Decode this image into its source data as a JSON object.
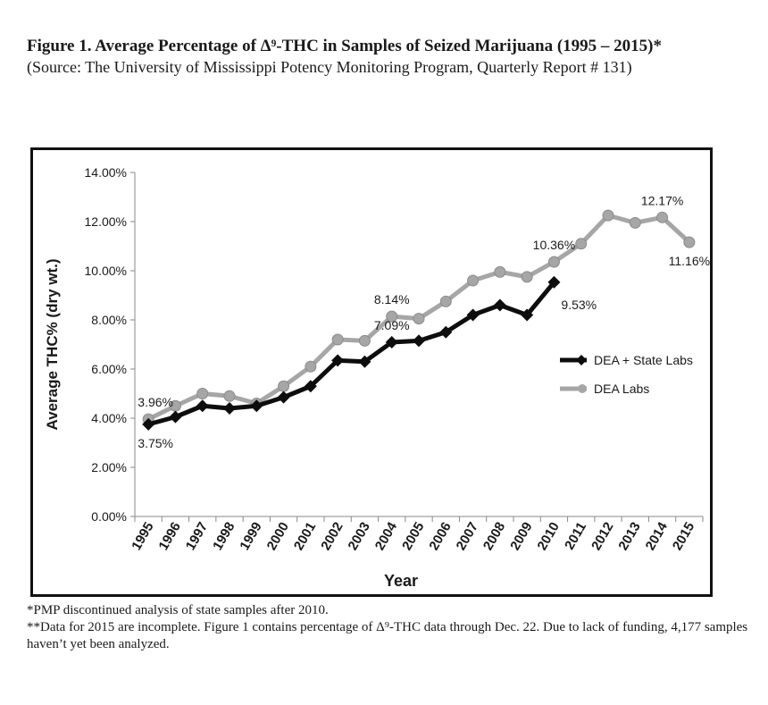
{
  "figure": {
    "title": "Figure 1.  Average Percentage of Δ⁹-THC in Samples of Seized Marijuana (1995 – 2015)*",
    "source": "(Source: The University of Mississippi Potency Monitoring Program, Quarterly Report # 131)"
  },
  "footnotes": {
    "note1": "*PMP discontinued analysis of state samples after 2010.",
    "note2": "**Data for 2015 are incomplete. Figure 1 contains percentage of Δ⁹-THC data through Dec. 22. Due to lack of funding, 4,177 samples haven’t yet been analyzed."
  },
  "colors": {
    "dea_state": "#0d0d0d",
    "dea": "#a6a6a6",
    "axis": "#888888",
    "text": "#1a1a1a"
  },
  "chart_data": {
    "type": "line",
    "title": "",
    "xlabel": "Year",
    "ylabel": "Average THC% (dry wt.)",
    "ylim": [
      0,
      14
    ],
    "y_ticks": [
      "0.00%",
      "2.00%",
      "4.00%",
      "6.00%",
      "8.00%",
      "10.00%",
      "12.00%",
      "14.00%"
    ],
    "categories": [
      "1995",
      "1996",
      "1997",
      "1998",
      "1999",
      "2000",
      "2001",
      "2002",
      "2003",
      "2004",
      "2005",
      "2006",
      "2007",
      "2008",
      "2009",
      "2010",
      "2011",
      "2012",
      "2013",
      "2014",
      "2015"
    ],
    "series": [
      {
        "name": "DEA + State Labs",
        "marker": "diamond",
        "values": [
          3.75,
          4.05,
          4.5,
          4.4,
          4.5,
          4.85,
          5.3,
          6.35,
          6.3,
          7.09,
          7.15,
          7.5,
          8.2,
          8.6,
          8.2,
          9.53,
          null,
          null,
          null,
          null,
          null
        ]
      },
      {
        "name": "DEA Labs",
        "marker": "circle",
        "values": [
          3.96,
          4.5,
          5.0,
          4.9,
          4.6,
          5.3,
          6.1,
          7.2,
          7.15,
          8.14,
          8.05,
          8.75,
          9.6,
          9.95,
          9.75,
          10.36,
          11.1,
          12.25,
          11.95,
          12.17,
          11.16
        ]
      }
    ],
    "annotations": [
      {
        "text": "3.96%",
        "series": 1,
        "index": 0,
        "pos": "above"
      },
      {
        "text": "3.75%",
        "series": 0,
        "index": 0,
        "pos": "below"
      },
      {
        "text": "8.14%",
        "series": 1,
        "index": 9,
        "pos": "above"
      },
      {
        "text": "7.09%",
        "series": 0,
        "index": 9,
        "pos": "above"
      },
      {
        "text": "10.36%",
        "series": 1,
        "index": 15,
        "pos": "above"
      },
      {
        "text": "9.53%",
        "series": 0,
        "index": 15,
        "pos": "below-right"
      },
      {
        "text": "12.17%",
        "series": 1,
        "index": 19,
        "pos": "above"
      },
      {
        "text": "11.16%",
        "series": 1,
        "index": 20,
        "pos": "below"
      }
    ],
    "legend": {
      "placement": "right",
      "entries": [
        "DEA + State Labs",
        "DEA Labs"
      ]
    }
  }
}
